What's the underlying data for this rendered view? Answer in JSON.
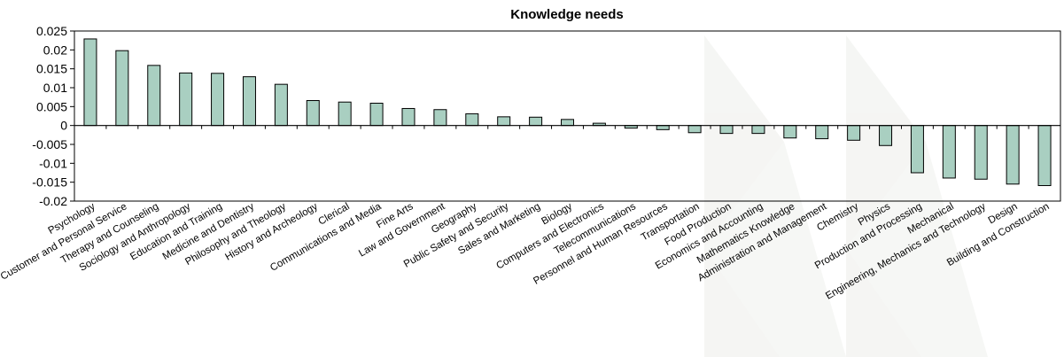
{
  "chart_data": {
    "type": "bar",
    "title": "Knowledge needs",
    "xlabel": "",
    "ylabel": "",
    "ylim": [
      -0.02,
      0.025
    ],
    "yticks": [
      "-0.02",
      "-0.015",
      "-0.01",
      "-0.005",
      "0",
      "0.005",
      "0.01",
      "0.015",
      "0.02",
      "0.025"
    ],
    "grid": false,
    "legend": "none",
    "bar_color": "#a9cfc1",
    "bar_edge_color": "#000000",
    "categories": [
      "Psychology",
      "Customer and Personal Service",
      "Therapy and Counseling",
      "Sociology and Anthropology",
      "Education and Training",
      "Medicine and Dentistry",
      "Philosophy and Theology",
      "History and Archeology",
      "Clerical",
      "Communications and Media",
      "Fine Arts",
      "Law and Government",
      "Geography",
      "Public Safety and Security",
      "Sales and Marketing",
      "Biology",
      "Computers and Electronics",
      "Telecommunications",
      "Personnel and Human Resources",
      "Transportation",
      "Food Production",
      "Economics and Accounting",
      "Mathematics Knowledge",
      "Administration and Management",
      "Chemistry",
      "Physics",
      "Production and Processing",
      "Mechanical",
      "Engineering, Mechanics and Technology",
      "Design",
      "Building and Construction"
    ],
    "values": [
      0.0229,
      0.0198,
      0.0159,
      0.0139,
      0.0138,
      0.0129,
      0.0109,
      0.0066,
      0.0062,
      0.0059,
      0.0045,
      0.0042,
      0.0031,
      0.0023,
      0.0022,
      0.0016,
      0.0006,
      -0.0007,
      -0.0011,
      -0.0019,
      -0.0021,
      -0.0021,
      -0.0033,
      -0.0035,
      -0.0039,
      -0.0053,
      -0.0125,
      -0.0139,
      -0.0142,
      -0.0155,
      -0.0159
    ]
  }
}
